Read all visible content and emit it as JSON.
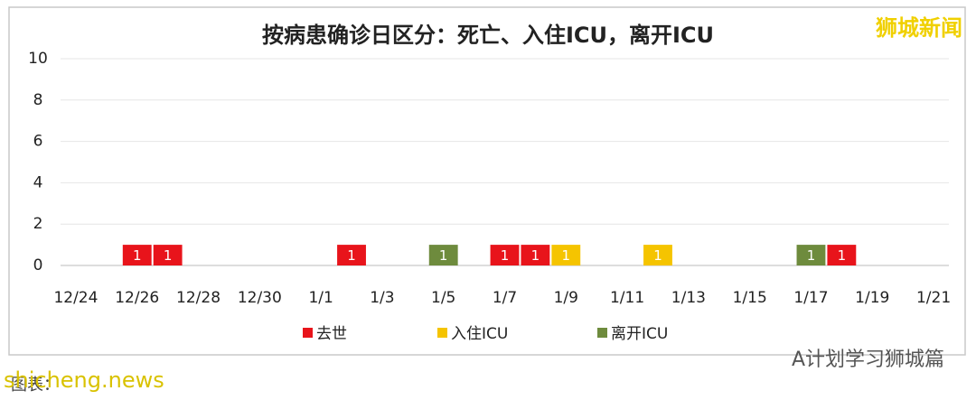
{
  "chart_data": {
    "type": "bar",
    "stacked": true,
    "title": "按病患确诊日区分：死亡、入住ICU，离开ICU",
    "categories": [
      "12/24",
      null,
      "12/26",
      null,
      "12/28",
      null,
      "12/30",
      null,
      "1/1",
      null,
      "1/3",
      null,
      "1/5",
      null,
      "1/7",
      null,
      "1/9",
      null,
      "1/11",
      null,
      "1/13",
      null,
      "1/15",
      null,
      "1/17",
      null,
      "1/19",
      null,
      "1/21"
    ],
    "series": [
      {
        "name": "去世",
        "color": "#e8141b",
        "values": [
          null,
          null,
          1,
          1,
          null,
          null,
          null,
          null,
          null,
          1,
          null,
          null,
          null,
          null,
          1,
          1,
          null,
          null,
          null,
          null,
          null,
          null,
          null,
          null,
          null,
          1,
          null,
          null,
          null
        ]
      },
      {
        "name": "入住ICU",
        "color": "#f5c400",
        "values": [
          null,
          null,
          null,
          null,
          null,
          null,
          null,
          null,
          null,
          null,
          null,
          null,
          null,
          null,
          null,
          null,
          1,
          null,
          null,
          1,
          null,
          null,
          null,
          null,
          null,
          null,
          null,
          null,
          null
        ]
      },
      {
        "name": "离开ICU",
        "color": "#6e8b3d",
        "values": [
          null,
          null,
          null,
          null,
          null,
          null,
          null,
          null,
          null,
          null,
          null,
          null,
          1,
          null,
          null,
          null,
          null,
          null,
          null,
          null,
          null,
          null,
          null,
          null,
          1,
          null,
          null,
          null,
          null
        ]
      }
    ],
    "ylim": [
      0,
      10
    ],
    "yticks": [
      0,
      2,
      4,
      6,
      8,
      10
    ],
    "grid": true,
    "legend": "bottom"
  },
  "watermarks": {
    "top_right": "狮城新闻",
    "bottom_right": "A计划学习狮城篇",
    "bottom_left": "shicheng.news",
    "source": "图表："
  }
}
